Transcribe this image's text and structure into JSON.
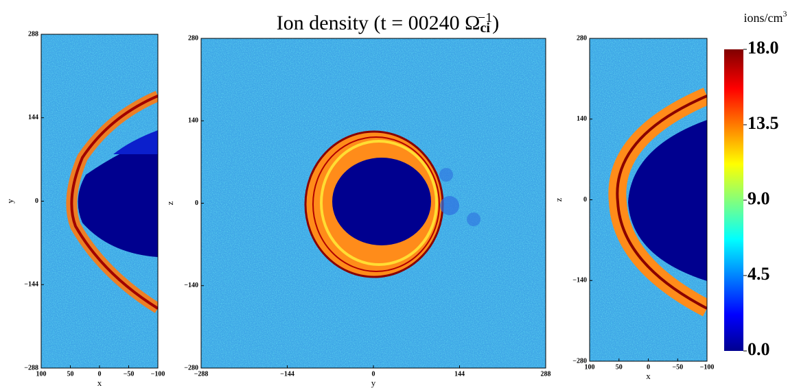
{
  "title": "Ion density (t = 00240 Ω",
  "title_sub": "ci",
  "title_sup": "−1",
  "title_end": ")",
  "chart_data": [
    {
      "type": "image",
      "xlabel": "x",
      "ylabel": "y",
      "xlim": [
        100,
        -100
      ],
      "ylim": [
        -288,
        288
      ],
      "xticks": [
        100,
        50,
        0,
        {
          "value": -50,
          "label": "−50"
        },
        {
          "value": -100,
          "label": "−100"
        }
      ],
      "yticks": [
        {
          "value": -288,
          "label": "−288"
        },
        {
          "value": -144,
          "label": "−144"
        },
        0,
        144,
        288
      ]
    },
    {
      "type": "image",
      "xlabel": "y",
      "ylabel": "z",
      "xlim": [
        -288,
        288
      ],
      "ylim": [
        -280,
        280
      ],
      "xticks": [
        {
          "value": -288,
          "label": "−288"
        },
        {
          "value": -144,
          "label": "−144"
        },
        0,
        144,
        288
      ],
      "yticks": [
        {
          "value": -280,
          "label": "−280"
        },
        {
          "value": -140,
          "label": "−140"
        },
        0,
        140,
        280
      ]
    },
    {
      "type": "image",
      "xlabel": "x",
      "ylabel": "z",
      "xlim": [
        100,
        -100
      ],
      "ylim": [
        -280,
        280
      ],
      "xticks": [
        100,
        50,
        0,
        {
          "value": -50,
          "label": "−50"
        },
        {
          "value": -100,
          "label": "−100"
        }
      ],
      "yticks": [
        {
          "value": -280,
          "label": "−280"
        },
        {
          "value": -140,
          "label": "−140"
        },
        0,
        140,
        280
      ]
    },
    {
      "type": "colorbar",
      "label": "ions/cm",
      "label_sup": "3",
      "ylim": [
        0,
        18
      ],
      "yticks": [
        {
          "value": 0,
          "label": "0.0"
        },
        {
          "value": 4.5,
          "label": "4.5"
        },
        {
          "value": 9,
          "label": "9.0"
        },
        {
          "value": 13.5,
          "label": "13.5"
        },
        {
          "value": 18,
          "label": "18.0"
        }
      ]
    }
  ]
}
